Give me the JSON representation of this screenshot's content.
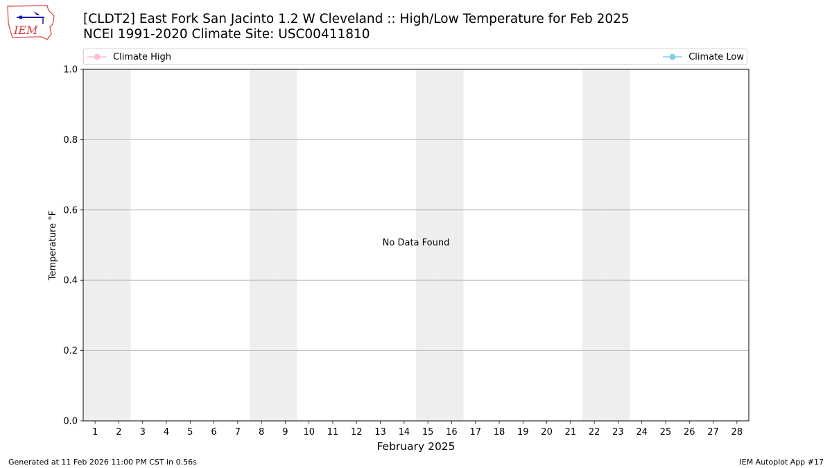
{
  "header": {
    "title_line1": "[CLDT2] East Fork San Jacinto 1.2 W Cleveland :: High/Low Temperature for Feb 2025",
    "title_line2": "NCEI 1991-2020 Climate Site: USC00411810",
    "logo_text": "IEM"
  },
  "legend": {
    "high_label": "Climate High",
    "low_label": "Climate Low"
  },
  "colors": {
    "climate_high": "#ffc0cb",
    "climate_low": "#87ceeb",
    "weekend_band": "#eeeeee",
    "grid": "#b0b0b0"
  },
  "footer": {
    "generated": "Generated at 11 Feb 2026 11:00 PM CST in 0.56s",
    "app": "IEM Autoplot App #17"
  },
  "chart_data": {
    "type": "line",
    "title": "[CLDT2] East Fork San Jacinto 1.2 W Cleveland :: High/Low Temperature for Feb 2025",
    "subtitle": "NCEI 1991-2020 Climate Site: USC00411810",
    "xlabel": "February 2025",
    "ylabel": "Temperature °F",
    "xlim": [
      0.5,
      28.5
    ],
    "ylim": [
      0,
      1
    ],
    "x_ticks": [
      1,
      2,
      3,
      4,
      5,
      6,
      7,
      8,
      9,
      10,
      11,
      12,
      13,
      14,
      15,
      16,
      17,
      18,
      19,
      20,
      21,
      22,
      23,
      24,
      25,
      26,
      27,
      28
    ],
    "y_ticks": [
      0.0,
      0.2,
      0.4,
      0.6,
      0.8,
      1.0
    ],
    "y_tick_labels": [
      "0.0",
      "0.2",
      "0.4",
      "0.6",
      "0.8",
      "1.0"
    ],
    "weekend_days": [
      1,
      2,
      8,
      9,
      15,
      16,
      22,
      23
    ],
    "grid": "y",
    "legend_placement": "top",
    "series": [
      {
        "name": "Climate High",
        "values": []
      },
      {
        "name": "Climate Low",
        "values": []
      }
    ],
    "annotation": "No Data Found"
  }
}
